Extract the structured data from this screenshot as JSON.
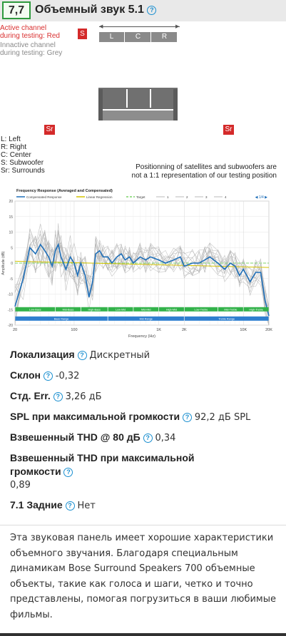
{
  "header": {
    "score": "7,7",
    "title": "Объемный звук 5.1",
    "help_icon": "question-circle-icon",
    "score_border_color": "#2e9a3e"
  },
  "diagram": {
    "legend_active": [
      "Active channel",
      "during testing: Red"
    ],
    "legend_inactive": [
      "Innactive channel",
      "during testing: Grey"
    ],
    "speaker_s": "S",
    "channels": [
      "L",
      "C",
      "R"
    ],
    "surround_left": "Sr",
    "surround_right": "Sr",
    "key": [
      "L: Left",
      "R: Right",
      "C: Center",
      "S: Subwoofer",
      "Sr: Surrounds"
    ],
    "note": [
      "Positionning of satellites and subwoofers are",
      "not a 1:1 representation of our testing position"
    ],
    "active_color": "#d42a2a",
    "inactive_color": "#8a8a8a"
  },
  "chart_data": {
    "type": "line",
    "title": "Frequency Response (Averaged and Compensated)",
    "legend": [
      "Compensated Response",
      "Linear Regression",
      "Target",
      "1",
      "2",
      "3",
      "4"
    ],
    "legend_page": "1/4",
    "xlabel": "Frequency (Hz)",
    "ylabel": "Amplitude (dB)",
    "x_scale": "log",
    "xlim": [
      20,
      20000
    ],
    "ylim": [
      -20,
      20
    ],
    "x_ticks": [
      {
        "v": 20,
        "label": "20"
      },
      {
        "v": 100,
        "label": "100"
      },
      {
        "v": 1000,
        "label": "1K"
      },
      {
        "v": 2000,
        "label": "2K"
      },
      {
        "v": 10000,
        "label": "10K"
      },
      {
        "v": 20000,
        "label": "20K"
      }
    ],
    "y_ticks": [
      20,
      15,
      10,
      5,
      0,
      -5,
      -10,
      -15,
      -20
    ],
    "grid": true,
    "bands_top": [
      {
        "label": "Low-Bass",
        "from": 20,
        "to": 60
      },
      {
        "label": "Mid-Bass",
        "from": 60,
        "to": 120
      },
      {
        "label": "High-Bass",
        "from": 120,
        "to": 250
      },
      {
        "label": "Low-Mid",
        "from": 250,
        "to": 500
      },
      {
        "label": "Mid-Mid",
        "from": 500,
        "to": 1000
      },
      {
        "label": "High-Mid",
        "from": 1000,
        "to": 2000
      },
      {
        "label": "Low-Treble",
        "from": 2000,
        "to": 5000
      },
      {
        "label": "Mid-Treble",
        "from": 5000,
        "to": 10000
      },
      {
        "label": "High-Treble",
        "from": 10000,
        "to": 20000
      }
    ],
    "bands_bottom": [
      {
        "label": "Bass Range",
        "from": 20,
        "to": 250
      },
      {
        "label": "Mid Range",
        "from": 250,
        "to": 2000
      },
      {
        "label": "Treble Range",
        "from": 2000,
        "to": 20000
      }
    ],
    "series": [
      {
        "name": "Compensated Response",
        "color": "#1f6fb8",
        "x": [
          20,
          25,
          30,
          35,
          40,
          45,
          50,
          55,
          60,
          65,
          70,
          80,
          90,
          100,
          110,
          120,
          135,
          150,
          165,
          180,
          200,
          220,
          250,
          280,
          320,
          360,
          400,
          450,
          500,
          600,
          700,
          800,
          1000,
          1200,
          1500,
          1800,
          2000,
          2500,
          3000,
          3500,
          4000,
          5000,
          6000,
          7000,
          8000,
          9000,
          10000,
          12000,
          14000,
          16000,
          18000,
          20000
        ],
        "y": [
          -14,
          -5,
          5,
          3,
          6,
          4,
          2,
          -1,
          4,
          6,
          2,
          -2,
          2,
          0,
          -4,
          0,
          -4,
          -11,
          -6,
          3,
          4,
          2,
          2,
          0,
          2,
          3,
          1,
          2,
          0,
          2,
          1,
          2,
          1,
          0,
          1,
          2,
          -1,
          0,
          0,
          1,
          2,
          0,
          -2,
          0,
          -1,
          -4,
          -2,
          -6,
          -3,
          -3,
          -12,
          -17
        ]
      },
      {
        "name": "Linear Regression",
        "color": "#d4c200",
        "x": [
          20,
          20000
        ],
        "y": [
          0.6,
          -1.4
        ]
      },
      {
        "name": "Target",
        "color": "#7dd36a",
        "x": [
          20,
          20000
        ],
        "y": [
          0,
          0
        ]
      }
    ]
  },
  "specs": [
    {
      "label": "Локализация",
      "value": "Дискретный"
    },
    {
      "label": "Склон",
      "value": "-0,32"
    },
    {
      "label": "Стд. Err.",
      "value": "3,26 дБ"
    },
    {
      "label": "SPL при максимальной громкости",
      "value": "92,2 дБ SPL"
    },
    {
      "label": "Взвешенный THD @ 80 дБ",
      "value": "0,34"
    },
    {
      "label": "Взвешенный THD при максимальной громкости",
      "value": "0,89",
      "block": true
    },
    {
      "label": "7.1 Задние",
      "value": "Нет"
    }
  ],
  "description": "Эта звуковая панель имеет хорошие характеристики объемного звучания. Благодаря специальным динамикам Bose Surround Speakers 700 объемные объекты, такие как голоса и шаги, четко и точно представлены, помогая погрузиться в ваши любимые фильмы."
}
